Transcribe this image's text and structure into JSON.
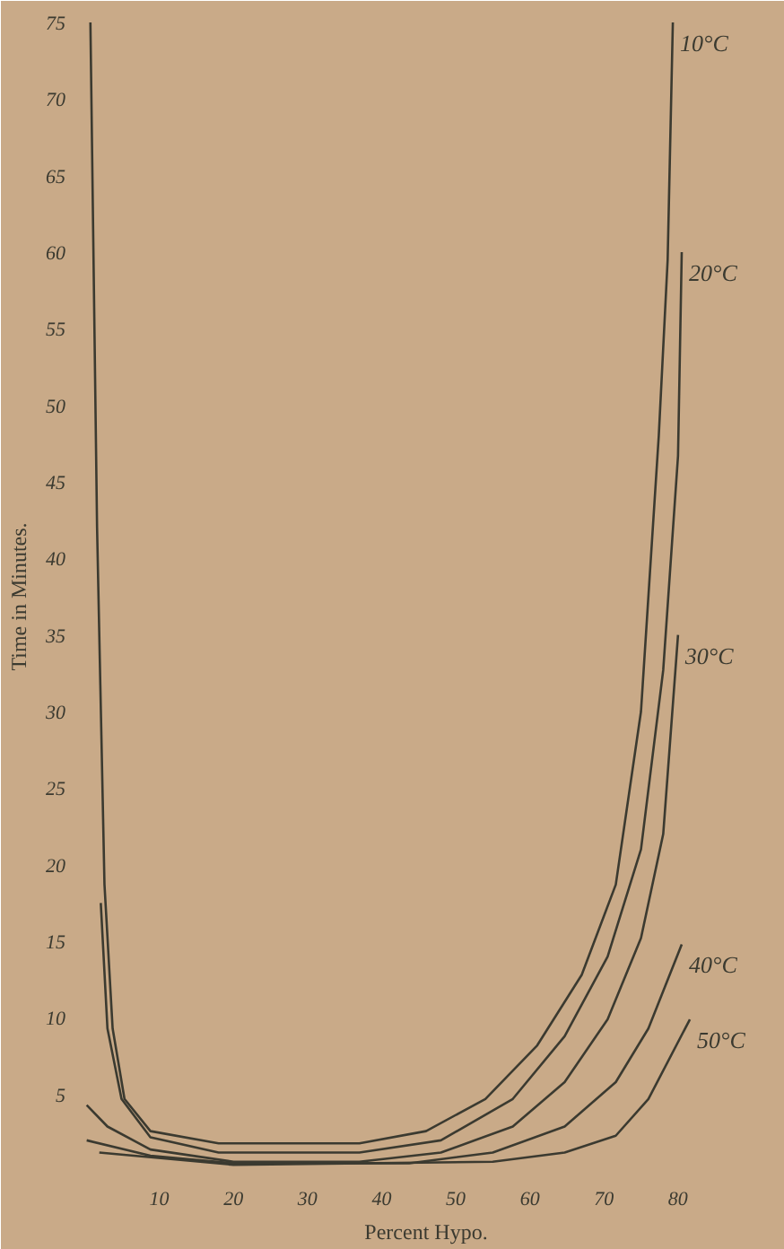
{
  "chart_data": {
    "type": "line",
    "xlabel": "Percent Hypo.",
    "ylabel": "Time in Minutes.",
    "xlim": [
      0,
      92
    ],
    "ylim": [
      0,
      75
    ],
    "xticks": [
      10,
      20,
      30,
      40,
      50,
      60,
      70,
      80
    ],
    "yticks": [
      5,
      10,
      15,
      20,
      25,
      30,
      35,
      40,
      45,
      50,
      55,
      60,
      65,
      70,
      75
    ],
    "grid": false,
    "marker": "none",
    "line_style": "solid",
    "series": [
      {
        "name": "10°C",
        "color": "#3b3a30",
        "x": [
          0.7,
          1.6,
          2.6,
          3.7,
          5.3,
          8.8,
          18,
          37,
          46,
          54,
          61,
          67,
          71.6,
          75,
          77.4,
          78.6,
          79.3
        ],
        "values": [
          75,
          42,
          18.7,
          9.3,
          4.7,
          2.6,
          1.8,
          1.8,
          2.6,
          4.7,
          8.2,
          12.8,
          18.7,
          30,
          48,
          59.5,
          75
        ]
      },
      {
        "name": "20°C",
        "color": "#3b3a30",
        "x": [
          2.1,
          3,
          4.9,
          8.8,
          18,
          37,
          48,
          57.7,
          64.7,
          70.5,
          75,
          78,
          80,
          80.5
        ],
        "values": [
          17.5,
          9.3,
          4.7,
          2.2,
          1.2,
          1.2,
          2,
          4.7,
          8.8,
          14,
          21,
          32.7,
          46.7,
          60
        ]
      },
      {
        "name": "30°C",
        "color": "#3b3a30",
        "x": [
          0.2,
          3,
          8.8,
          20,
          37,
          48,
          57.7,
          64.7,
          70.5,
          75,
          78,
          80
        ],
        "values": [
          4.3,
          2.9,
          1.4,
          0.6,
          0.6,
          1.2,
          2.9,
          5.8,
          9.9,
          15.2,
          22,
          35
        ]
      },
      {
        "name": "40°C",
        "color": "#3b3a30",
        "x": [
          0.2,
          8.8,
          20,
          43.7,
          55,
          64.7,
          71.6,
          76,
          80.5
        ],
        "values": [
          2,
          1,
          0.5,
          0.5,
          1.2,
          2.9,
          5.8,
          9.3,
          14.8
        ]
      },
      {
        "name": "50°C",
        "color": "#3b3a30",
        "x": [
          1.9,
          20,
          55,
          64.7,
          71.6,
          76,
          81.6
        ],
        "values": [
          1.2,
          0.4,
          0.6,
          1.2,
          2.3,
          4.7,
          9.9
        ]
      }
    ]
  }
}
